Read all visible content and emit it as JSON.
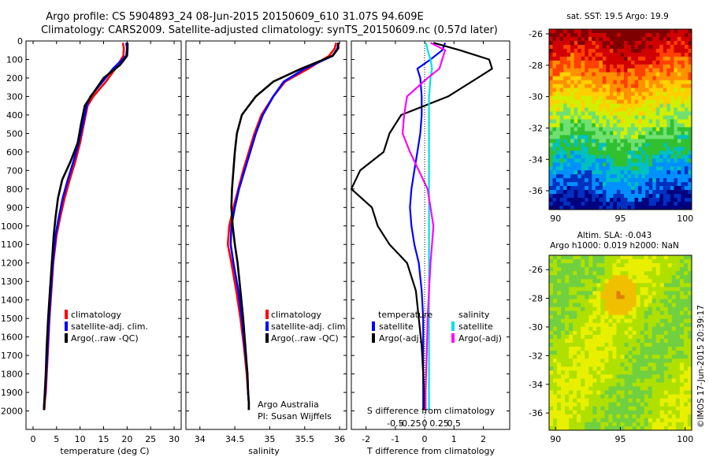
{
  "header": {
    "line1": "Argo profile: CS 5904893_24 08-Jun-2015 20150609_610 31.07S 94.609E",
    "line2": "Climatology: CARS2009. Satellite-adjusted climatology: synTS_20150609.nc (0.57d later)"
  },
  "colors": {
    "climatology": "#ff0000",
    "satellite": "#0000ff",
    "argo": "#000000",
    "satellite_salinity": "#00e0e0",
    "argo_salinity": "#ff00ff"
  },
  "chart_data": [
    {
      "type": "line",
      "id": "temperature",
      "xlabel": "temperature (deg C)",
      "ylabel": "",
      "xlim": [
        -1.5,
        31.5
      ],
      "ylim": [
        2100,
        0
      ],
      "xticks": [
        0,
        5,
        10,
        15,
        20,
        25,
        30
      ],
      "yticks": [
        0,
        100,
        200,
        300,
        400,
        500,
        600,
        700,
        800,
        900,
        1000,
        1100,
        1200,
        1300,
        1400,
        1500,
        1600,
        1700,
        1800,
        1900,
        2000
      ],
      "legend": [
        "climatology",
        "satellite-adj. clim.",
        "Argo(..raw -QC)"
      ],
      "series": [
        {
          "name": "climatology",
          "x": [
            19.1,
            19.3,
            19.2,
            17.5,
            15.5,
            12.8,
            11.6,
            10.8,
            10.0,
            9.0,
            7.8,
            6.7,
            5.8,
            5.0,
            4.3,
            3.9,
            3.5,
            3.2,
            2.9,
            2.7,
            2.5,
            2.4
          ],
          "y": [
            10,
            40,
            80,
            150,
            220,
            300,
            350,
            450,
            550,
            650,
            750,
            850,
            950,
            1050,
            1200,
            1350,
            1500,
            1650,
            1800,
            1900,
            1950,
            1995
          ]
        },
        {
          "name": "satellite-adj. clim.",
          "x": [
            19.8,
            20.0,
            19.8,
            17.0,
            14.8,
            12.2,
            11.4,
            10.6,
            9.7,
            8.6,
            7.4,
            6.3,
            5.5,
            4.8,
            4.2,
            3.8,
            3.4,
            3.1,
            2.8,
            2.6,
            2.4,
            2.3
          ],
          "y": [
            10,
            40,
            80,
            150,
            220,
            300,
            350,
            450,
            550,
            650,
            750,
            850,
            950,
            1050,
            1200,
            1350,
            1500,
            1650,
            1800,
            1900,
            1950,
            1995
          ]
        },
        {
          "name": "Argo(..raw -QC)",
          "x": [
            20.1,
            20.1,
            20.0,
            18.5,
            15.0,
            12.3,
            11.0,
            10.2,
            9.5,
            8.0,
            6.2,
            5.3,
            4.8,
            4.4,
            4.0,
            3.6,
            3.2,
            2.9,
            2.7,
            2.5,
            2.4,
            2.3
          ],
          "y": [
            10,
            40,
            80,
            130,
            200,
            300,
            350,
            450,
            550,
            650,
            750,
            850,
            950,
            1050,
            1200,
            1350,
            1500,
            1650,
            1800,
            1900,
            1950,
            1995
          ]
        }
      ]
    },
    {
      "type": "line",
      "id": "salinity",
      "xlabel": "salinity",
      "ylabel": "",
      "xlim": [
        33.8,
        36.1
      ],
      "ylim": [
        2100,
        0
      ],
      "xticks": [
        34,
        34.5,
        35,
        35.5,
        36
      ],
      "xticklabels": [
        "34",
        "34.5",
        "35",
        "35.5",
        "36"
      ],
      "legend": [
        "climatology",
        "satellite-adj. clim.",
        "Argo(..raw -QC)"
      ],
      "annotations": [
        "Argo Australia",
        "PI: Susan Wijffels"
      ],
      "series": [
        {
          "name": "climatology",
          "x": [
            35.95,
            35.93,
            35.85,
            35.55,
            35.22,
            35.05,
            34.88,
            34.78,
            34.7,
            34.62,
            34.55,
            34.48,
            34.42,
            34.4,
            34.45,
            34.52,
            34.58,
            34.63,
            34.67,
            34.69,
            34.7,
            34.7
          ],
          "y": [
            10,
            40,
            80,
            150,
            220,
            300,
            400,
            500,
            600,
            700,
            800,
            900,
            1000,
            1100,
            1200,
            1350,
            1500,
            1650,
            1800,
            1900,
            1950,
            1995
          ]
        },
        {
          "name": "satellite-adj. clim.",
          "x": [
            35.98,
            35.97,
            35.9,
            35.5,
            35.2,
            35.05,
            34.9,
            34.8,
            34.72,
            34.64,
            34.56,
            34.5,
            34.45,
            34.44,
            34.48,
            34.55,
            34.6,
            34.64,
            34.68,
            34.69,
            34.7,
            34.7
          ],
          "y": [
            10,
            40,
            80,
            150,
            220,
            300,
            400,
            500,
            600,
            700,
            800,
            900,
            1000,
            1100,
            1200,
            1350,
            1500,
            1650,
            1800,
            1900,
            1950,
            1995
          ]
        },
        {
          "name": "Argo(..raw -QC)",
          "x": [
            35.98,
            35.98,
            35.9,
            35.45,
            35.05,
            34.8,
            34.6,
            34.53,
            34.5,
            34.48,
            34.46,
            34.45,
            34.47,
            34.5,
            34.54,
            34.58,
            34.62,
            34.65,
            34.68,
            34.69,
            34.7,
            34.7
          ],
          "y": [
            10,
            40,
            80,
            150,
            220,
            300,
            400,
            500,
            600,
            700,
            800,
            900,
            1000,
            1100,
            1200,
            1350,
            1500,
            1650,
            1800,
            1900,
            1950,
            1995
          ]
        }
      ]
    },
    {
      "type": "line",
      "id": "difference",
      "xlabel": "T difference from climatology",
      "xlabel_top": "S difference from climatology",
      "xlim": [
        -2.5,
        2.9
      ],
      "ylim": [
        2100,
        0
      ],
      "xticks": [
        -2,
        -1,
        0,
        1,
        2
      ],
      "sticks": [
        -0.5,
        -0.25,
        0,
        0.25,
        0.5
      ],
      "legend_headers": [
        "temperature",
        "salinity"
      ],
      "legend": [
        "satellite",
        "Argo(-adj)",
        "satellite",
        "Argo(-adj)"
      ],
      "series": [
        {
          "name": "satellite",
          "x": [
            0.7,
            0.6,
            0.2,
            -0.25,
            -0.15,
            -0.1,
            -0.1,
            -0.15,
            -0.25,
            -0.35,
            -0.45,
            -0.5,
            -0.45,
            -0.35,
            -0.2,
            -0.1,
            -0.05,
            -0.05,
            -0.05,
            -0.05,
            -0.05
          ],
          "y": [
            10,
            50,
            100,
            150,
            200,
            300,
            400,
            500,
            600,
            700,
            800,
            900,
            1000,
            1100,
            1200,
            1350,
            1500,
            1650,
            1800,
            1900,
            1995
          ]
        },
        {
          "name": "Argo(-adj)",
          "x": [
            0.3,
            1.2,
            2.2,
            2.3,
            1.8,
            0.8,
            -0.8,
            -1.2,
            -1.4,
            -2.2,
            -2.5,
            -1.8,
            -1.6,
            -1.2,
            -0.6,
            -0.3,
            -0.2,
            -0.1,
            -0.05,
            -0.02,
            -0.02
          ],
          "y": [
            10,
            50,
            100,
            150,
            200,
            300,
            400,
            500,
            600,
            700,
            800,
            900,
            1000,
            1100,
            1200,
            1350,
            1500,
            1650,
            1800,
            1900,
            1995
          ]
        },
        {
          "name": "satellite (salinity)",
          "x": [
            0.05,
            0.1,
            0.2,
            0.25,
            0.2,
            0.15,
            0.15,
            0.15,
            0.15,
            0.15,
            0.15,
            0.15,
            0.15,
            0.15,
            0.15,
            0.15,
            0.15,
            0.15,
            0.15,
            0.15,
            0.15
          ],
          "y": [
            10,
            50,
            100,
            150,
            200,
            300,
            400,
            500,
            600,
            700,
            800,
            900,
            1000,
            1100,
            1200,
            1350,
            1500,
            1650,
            1800,
            1900,
            1995
          ]
        },
        {
          "name": "Argo(-adj) (salinity)",
          "x": [
            0.2,
            0.7,
            0.6,
            0.5,
            0.1,
            -0.6,
            -0.7,
            -0.75,
            -0.5,
            -0.2,
            0.1,
            0.2,
            0.3,
            0.25,
            0.2,
            0.15,
            0.1,
            0.08,
            0.05,
            0.03,
            0.03
          ],
          "y": [
            10,
            50,
            100,
            150,
            200,
            300,
            400,
            500,
            600,
            700,
            800,
            900,
            1000,
            1100,
            1200,
            1350,
            1500,
            1650,
            1800,
            1900,
            1995
          ]
        }
      ]
    },
    {
      "type": "heatmap",
      "id": "sst-map",
      "title": "sat. SST: 19.5 Argo: 19.9",
      "xlim": [
        89.5,
        100.5
      ],
      "ylim": [
        -37.2,
        -25.7
      ],
      "xticks": [
        90,
        95,
        100
      ],
      "yticks": [
        -26,
        -28,
        -30,
        -32,
        -34,
        -36
      ],
      "colormap": [
        "#7f0000",
        "#d00000",
        "#ff4000",
        "#ff9000",
        "#ffd000",
        "#d0f000",
        "#70e070",
        "#30c030",
        "#00c0c0",
        "#0090ff",
        "#0030c0",
        "#000080"
      ]
    },
    {
      "type": "heatmap",
      "id": "sla-map",
      "title": "Altim. SLA: -0.043",
      "subtitle": "Argo h1000: 0.019 h2000: NaN",
      "xlim": [
        89.5,
        100.5
      ],
      "ylim": [
        -37.2,
        -25.0
      ],
      "xticks": [
        90,
        95,
        100
      ],
      "yticks": [
        -26,
        -28,
        -30,
        -32,
        -34,
        -36
      ],
      "colormap": [
        "#e08000",
        "#f0c000",
        "#e8f000",
        "#b0e000",
        "#70d040",
        "#40c060",
        "#30b070"
      ]
    }
  ],
  "sidebar_text": "©IMOS 17-Jun-2015 20:39:17"
}
